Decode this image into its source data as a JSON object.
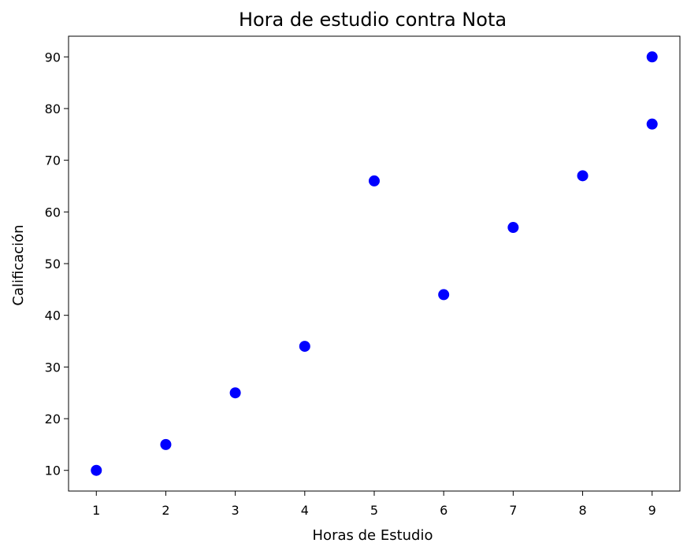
{
  "chart_data": {
    "type": "scatter",
    "title": "Hora de estudio contra Nota",
    "xlabel": "Horas de Estudio",
    "ylabel": "Calificación",
    "x_ticks": [
      1,
      2,
      3,
      4,
      5,
      6,
      7,
      8,
      9
    ],
    "y_ticks": [
      10,
      20,
      30,
      40,
      50,
      60,
      70,
      80,
      90
    ],
    "xlim": [
      0.6,
      9.4
    ],
    "ylim": [
      6,
      94
    ],
    "grid": false,
    "marker_color": "#0000ff",
    "series": [
      {
        "points": [
          {
            "x": 1,
            "y": 10
          },
          {
            "x": 2,
            "y": 15
          },
          {
            "x": 3,
            "y": 25
          },
          {
            "x": 4,
            "y": 34
          },
          {
            "x": 5,
            "y": 66
          },
          {
            "x": 6,
            "y": 44
          },
          {
            "x": 7,
            "y": 57
          },
          {
            "x": 8,
            "y": 67
          },
          {
            "x": 9,
            "y": 77
          },
          {
            "x": 9,
            "y": 90
          }
        ]
      }
    ]
  }
}
